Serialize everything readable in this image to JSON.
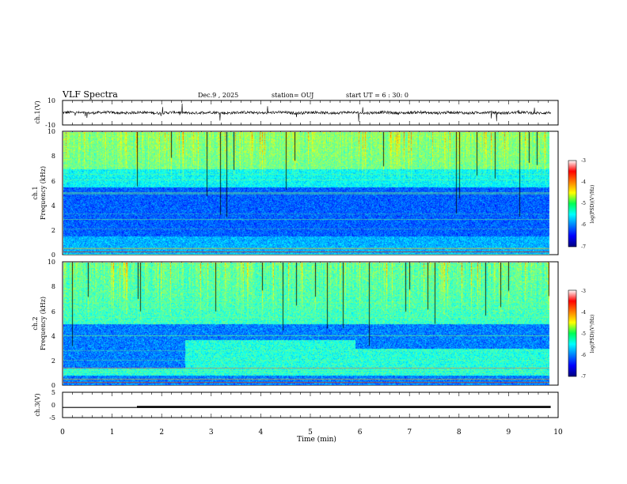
{
  "header": {
    "title": "VLF Spectra",
    "date": "Dec.9 , 2025",
    "station": "station= OUJ",
    "start": "start UT = 6 : 30: 0"
  },
  "chart_data": [
    {
      "type": "line",
      "ylabel": "ch.1(V)",
      "ylim": [
        -10,
        10
      ],
      "yticks": [
        "10",
        "-10"
      ],
      "xlim": [
        0,
        10
      ],
      "series": []
    },
    {
      "type": "heatmap",
      "ylabel_line1": "ch.1",
      "ylabel_line2": "Frequency (kHz)",
      "ylim": [
        0,
        10
      ],
      "yticks": [
        "0",
        "2",
        "4",
        "6",
        "8",
        "10"
      ],
      "xlim": [
        0,
        10
      ],
      "colorbar": {
        "label": "log(PSD)(V²/Hz)",
        "range": [
          -7,
          -3
        ],
        "ticks": [
          "-3",
          "-4",
          "-5",
          "-6",
          "-7"
        ]
      }
    },
    {
      "type": "heatmap",
      "ylabel_line1": "ch.2",
      "ylabel_line2": "Frequency (kHz)",
      "ylim": [
        0,
        10
      ],
      "yticks": [
        "0",
        "2",
        "4",
        "6",
        "8",
        "10"
      ],
      "xlim": [
        0,
        10
      ],
      "colorbar": {
        "label": "log(PSD)(V²/Hz)",
        "range": [
          -7,
          -3
        ],
        "ticks": [
          "-3",
          "-4",
          "-5",
          "-6",
          "-7"
        ]
      }
    },
    {
      "type": "line",
      "ylabel": "ch.3(V)",
      "ylim": [
        -5,
        5
      ],
      "yticks": [
        "5",
        "0",
        "-5"
      ],
      "xlim": [
        0,
        10
      ],
      "xlabel": "Time (min)",
      "xticks": [
        "0",
        "1",
        "2",
        "3",
        "4",
        "5",
        "6",
        "7",
        "8",
        "9",
        "10"
      ],
      "series": [
        {
          "x": [
            0,
            1.5,
            1.5,
            9.85
          ],
          "y": [
            -1.0,
            -1.0,
            -0.8,
            -0.8
          ]
        }
      ]
    }
  ]
}
